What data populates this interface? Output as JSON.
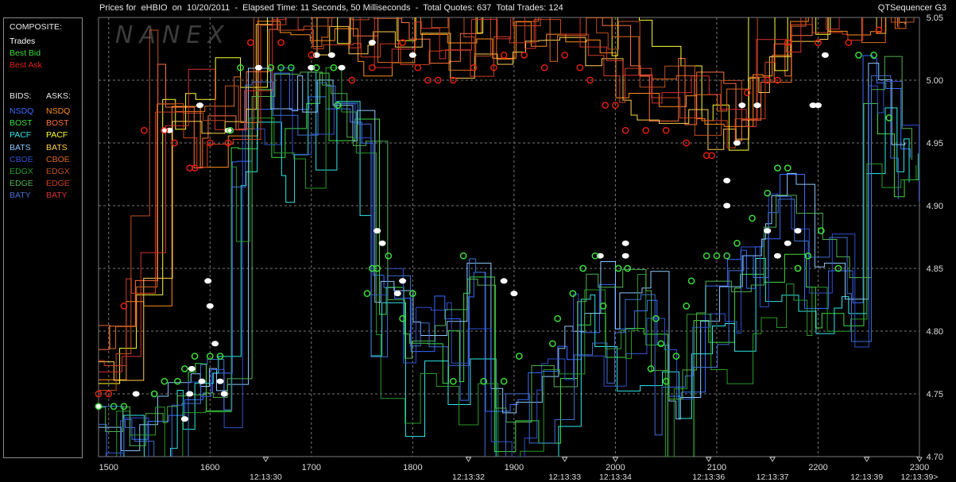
{
  "header": {
    "title": "Prices for  eHBIO  on  10/20/2011  -  Elapsed Time: 11 Seconds, 50 Milliseconds  -  Total Quotes: 637  Total Trades: 124",
    "app_name": "QTSequencer G3",
    "watermark": "NANEX"
  },
  "legend": {
    "composite_label": "COMPOSITE:",
    "composite": [
      {
        "label": "Trades",
        "color": "#ffffff"
      },
      {
        "label": "Best Bid",
        "color": "#3ddc3d"
      },
      {
        "label": "Best Ask",
        "color": "#e02010"
      }
    ],
    "bids_label": "BIDS:",
    "asks_label": "ASKS:",
    "exchanges": [
      {
        "bid": "NSDQ",
        "ask": "NSDQ",
        "bid_color": "#3a6bff",
        "ask_color": "#ff8c1a"
      },
      {
        "bid": "BOST",
        "ask": "BOST",
        "bid_color": "#3ddc3d",
        "ask_color": "#ff7040"
      },
      {
        "bid": "PACF",
        "ask": "PACF",
        "bid_color": "#30e8e8",
        "ask_color": "#ffff30"
      },
      {
        "bid": "BATS",
        "ask": "BATS",
        "bid_color": "#8cc8ff",
        "ask_color": "#ffd050"
      },
      {
        "bid": "CBOE",
        "ask": "CBOE",
        "bid_color": "#3050d0",
        "ask_color": "#e06a20"
      },
      {
        "bid": "EDGX",
        "ask": "EDGX",
        "bid_color": "#2a9a2a",
        "ask_color": "#c05020"
      },
      {
        "bid": "EDGE",
        "ask": "EDGE",
        "bid_color": "#50b050",
        "ask_color": "#d04020"
      },
      {
        "bid": "BATY",
        "ask": "BATY",
        "bid_color": "#4070d0",
        "ask_color": "#d83030"
      }
    ]
  },
  "chart_data": {
    "type": "line",
    "ylim": [
      4.7,
      5.05
    ],
    "y_ticks": [
      "4.70",
      "4.75",
      "4.80",
      "4.85",
      "4.90",
      "4.95",
      "5.00",
      "5.05"
    ],
    "x_ticks": [
      "1500",
      "1600",
      "1700",
      "1800",
      "1900",
      "2000",
      "2100",
      "2200",
      "2300"
    ],
    "xlim": [
      1490,
      2300
    ],
    "time_labels": [
      {
        "x": 1655,
        "label": "12:13:30"
      },
      {
        "x": 1855,
        "label": "12:13:32"
      },
      {
        "x": 1950,
        "label": "12:13:33"
      },
      {
        "x": 2000,
        "label": "12:13:34"
      },
      {
        "x": 2092,
        "label": "12:13:36"
      },
      {
        "x": 2155,
        "label": "12:13:37"
      },
      {
        "x": 2248,
        "label": "12:13:39"
      },
      {
        "x": 2300,
        "label": "12:13:39>"
      }
    ],
    "series": [
      {
        "name": "Trades",
        "color": "#ffffff",
        "points": [
          [
            1490,
            4.74
          ],
          [
            1527,
            4.75
          ],
          [
            1555,
            4.96
          ],
          [
            1560,
            4.96
          ],
          [
            1575,
            4.73
          ],
          [
            1580,
            4.75
          ],
          [
            1582,
            4.77
          ],
          [
            1590,
            4.98
          ],
          [
            1592,
            4.76
          ],
          [
            1598,
            4.84
          ],
          [
            1600,
            4.82
          ],
          [
            1605,
            4.79
          ],
          [
            1610,
            4.76
          ],
          [
            1614,
            4.75
          ],
          [
            1618,
            4.96
          ],
          [
            1648,
            5.01
          ],
          [
            1700,
            5.01
          ],
          [
            1705,
            5.02
          ],
          [
            1720,
            5.02
          ],
          [
            1730,
            5.01
          ],
          [
            1760,
            5.03
          ],
          [
            1765,
            4.88
          ],
          [
            1770,
            4.87
          ],
          [
            1785,
            4.83
          ],
          [
            1790,
            4.84
          ],
          [
            1800,
            5.02
          ],
          [
            1890,
            4.84
          ],
          [
            1900,
            4.83
          ],
          [
            1985,
            4.86
          ],
          [
            2010,
            4.86
          ],
          [
            2010,
            4.87
          ],
          [
            2110,
            4.9
          ],
          [
            2110,
            4.92
          ],
          [
            2120,
            4.95
          ],
          [
            2125,
            4.98
          ],
          [
            2140,
            4.98
          ],
          [
            2150,
            4.88
          ],
          [
            2160,
            4.86
          ],
          [
            2170,
            4.87
          ],
          [
            2180,
            4.88
          ],
          [
            2195,
            4.98
          ],
          [
            2200,
            4.98
          ],
          [
            2207,
            5.02
          ],
          [
            2300,
            5.06
          ]
        ]
      },
      {
        "name": "Best Bid",
        "color": "#3ddc3d",
        "points": [
          [
            1490,
            4.74
          ],
          [
            1505,
            4.74
          ],
          [
            1515,
            4.74
          ],
          [
            1545,
            4.75
          ],
          [
            1555,
            4.76
          ],
          [
            1568,
            4.76
          ],
          [
            1575,
            4.77
          ],
          [
            1585,
            4.78
          ],
          [
            1600,
            4.78
          ],
          [
            1610,
            4.78
          ],
          [
            1620,
            4.96
          ],
          [
            1630,
            5.01
          ],
          [
            1660,
            5.01
          ],
          [
            1670,
            5.01
          ],
          [
            1680,
            5.01
          ],
          [
            1705,
            5.01
          ],
          [
            1722,
            5.01
          ],
          [
            1726,
            4.98
          ],
          [
            1755,
            4.83
          ],
          [
            1760,
            4.85
          ],
          [
            1765,
            4.85
          ],
          [
            1776,
            4.86
          ],
          [
            1790,
            4.81
          ],
          [
            1800,
            4.83
          ],
          [
            1840,
            4.76
          ],
          [
            1850,
            4.86
          ],
          [
            1870,
            4.76
          ],
          [
            1890,
            4.76
          ],
          [
            1905,
            4.78
          ],
          [
            1938,
            4.79
          ],
          [
            1943,
            4.81
          ],
          [
            1958,
            4.83
          ],
          [
            1968,
            4.85
          ],
          [
            1980,
            4.86
          ],
          [
            1988,
            4.82
          ],
          [
            2003,
            4.85
          ],
          [
            2012,
            4.85
          ],
          [
            2035,
            4.77
          ],
          [
            2040,
            4.81
          ],
          [
            2045,
            4.79
          ],
          [
            2050,
            4.76
          ],
          [
            2060,
            4.78
          ],
          [
            2070,
            4.82
          ],
          [
            2075,
            4.84
          ],
          [
            2090,
            4.86
          ],
          [
            2100,
            4.86
          ],
          [
            2110,
            4.86
          ],
          [
            2120,
            4.87
          ],
          [
            2135,
            4.89
          ],
          [
            2150,
            4.91
          ],
          [
            2160,
            4.93
          ],
          [
            2170,
            4.93
          ],
          [
            2180,
            4.85
          ],
          [
            2190,
            4.86
          ],
          [
            2203,
            4.88
          ],
          [
            2220,
            4.85
          ],
          [
            2240,
            5.02
          ],
          [
            2255,
            5.02
          ],
          [
            2270,
            4.97
          ]
        ]
      },
      {
        "name": "Best Ask",
        "color": "#e02010",
        "points": [
          [
            1490,
            4.75
          ],
          [
            1500,
            4.75
          ],
          [
            1515,
            4.82
          ],
          [
            1535,
            4.96
          ],
          [
            1555,
            4.96
          ],
          [
            1565,
            4.95
          ],
          [
            1580,
            4.93
          ],
          [
            1585,
            4.93
          ],
          [
            1600,
            4.95
          ],
          [
            1618,
            4.95
          ],
          [
            1640,
            5.03
          ],
          [
            1670,
            5.03
          ],
          [
            1700,
            5.02
          ],
          [
            1740,
            5.0
          ],
          [
            1760,
            5.01
          ],
          [
            1790,
            5.03
          ],
          [
            1805,
            5.01
          ],
          [
            1815,
            5.0
          ],
          [
            1825,
            5.0
          ],
          [
            1840,
            5.0
          ],
          [
            1860,
            5.01
          ],
          [
            1880,
            5.01
          ],
          [
            1890,
            5.02
          ],
          [
            1910,
            5.02
          ],
          [
            1930,
            5.01
          ],
          [
            1950,
            5.02
          ],
          [
            1965,
            5.01
          ],
          [
            1975,
            5.0
          ],
          [
            1990,
            4.98
          ],
          [
            2000,
            4.98
          ],
          [
            2010,
            4.96
          ],
          [
            2030,
            4.96
          ],
          [
            2050,
            4.96
          ],
          [
            2070,
            4.95
          ],
          [
            2090,
            4.94
          ],
          [
            2095,
            4.94
          ],
          [
            2130,
            4.99
          ],
          [
            2150,
            5.0
          ],
          [
            2160,
            5.0
          ],
          [
            2170,
            5.03
          ],
          [
            2200,
            5.03
          ],
          [
            2230,
            5.03
          ],
          [
            2260,
            5.04
          ]
        ]
      }
    ]
  }
}
